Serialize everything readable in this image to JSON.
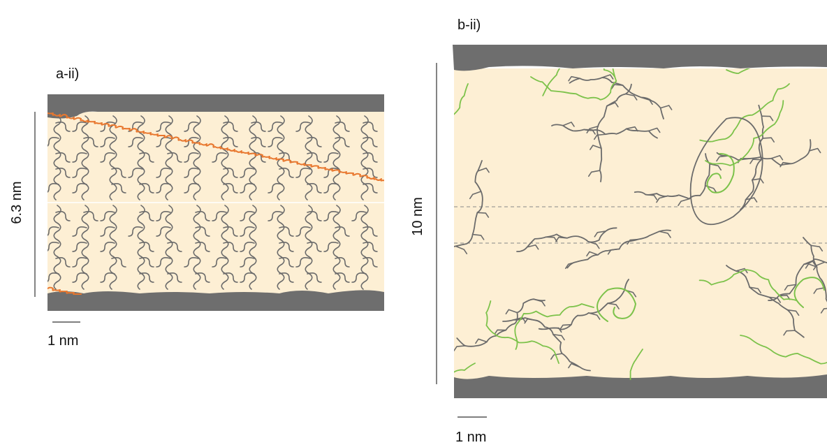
{
  "panel_a": {
    "label": "a-ii)",
    "thickness_label": "6.3 nm",
    "scale_label": "1 nm"
  },
  "panel_b": {
    "label": "b-ii)",
    "thickness_label": "10 nm",
    "scale_label": "1 nm"
  }
}
